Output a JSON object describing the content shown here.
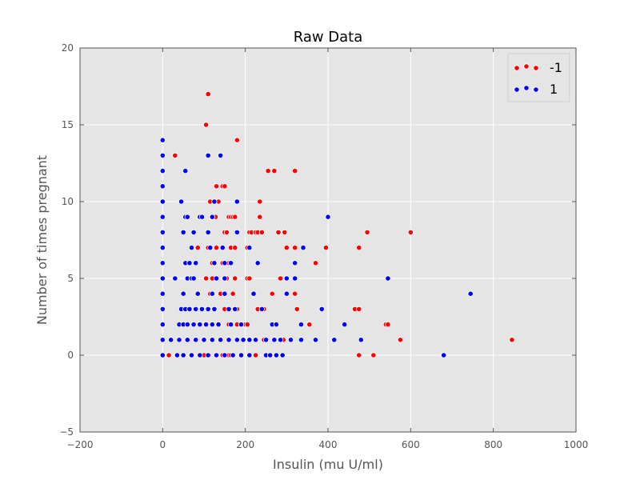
{
  "chart_data": {
    "type": "scatter",
    "title": "Raw Data",
    "xlabel": "Insulin (mu U/ml)",
    "ylabel": "Number of times pregnant",
    "xlim": [
      -200,
      1000
    ],
    "ylim": [
      -5,
      20
    ],
    "xticks": [
      -200,
      0,
      200,
      400,
      600,
      800,
      1000
    ],
    "yticks": [
      -5,
      0,
      5,
      10,
      15,
      20
    ],
    "grid": true,
    "background": "#e5e5e5",
    "legend_position": "top-right",
    "series": [
      {
        "name": "-1",
        "color": "#ff0000",
        "points": [
          [
            0,
            14
          ],
          [
            30,
            13
          ],
          [
            110,
            17
          ],
          [
            105,
            15
          ],
          [
            180,
            14
          ],
          [
            125,
            10
          ],
          [
            130,
            11
          ],
          [
            145,
            11
          ],
          [
            150,
            11
          ],
          [
            115,
            10
          ],
          [
            135,
            10
          ],
          [
            160,
            9
          ],
          [
            165,
            9
          ],
          [
            170,
            9
          ],
          [
            175,
            9
          ],
          [
            128,
            9
          ],
          [
            150,
            8
          ],
          [
            155,
            8
          ],
          [
            110,
            7
          ],
          [
            130,
            7
          ],
          [
            165,
            7
          ],
          [
            175,
            7
          ],
          [
            120,
            6
          ],
          [
            145,
            6
          ],
          [
            160,
            6
          ],
          [
            105,
            5
          ],
          [
            120,
            5
          ],
          [
            155,
            5
          ],
          [
            175,
            5
          ],
          [
            115,
            4
          ],
          [
            140,
            4
          ],
          [
            170,
            4
          ],
          [
            150,
            3
          ],
          [
            180,
            3
          ],
          [
            135,
            2
          ],
          [
            160,
            2
          ],
          [
            180,
            2
          ],
          [
            120,
            1
          ],
          [
            140,
            1
          ],
          [
            145,
            0
          ],
          [
            160,
            0
          ],
          [
            165,
            0
          ],
          [
            100,
            0
          ],
          [
            15,
            0
          ],
          [
            85,
            7
          ],
          [
            255,
            12
          ],
          [
            270,
            12
          ],
          [
            320,
            12
          ],
          [
            235,
            10
          ],
          [
            235,
            9
          ],
          [
            210,
            8
          ],
          [
            215,
            8
          ],
          [
            225,
            8
          ],
          [
            230,
            8
          ],
          [
            240,
            8
          ],
          [
            280,
            8
          ],
          [
            295,
            8
          ],
          [
            205,
            7
          ],
          [
            300,
            7
          ],
          [
            320,
            7
          ],
          [
            205,
            5
          ],
          [
            210,
            5
          ],
          [
            285,
            5
          ],
          [
            265,
            4
          ],
          [
            320,
            4
          ],
          [
            230,
            3
          ],
          [
            245,
            3
          ],
          [
            325,
            3
          ],
          [
            200,
            2
          ],
          [
            205,
            2
          ],
          [
            355,
            2
          ],
          [
            245,
            1
          ],
          [
            225,
            0
          ],
          [
            292,
            1
          ],
          [
            395,
            7
          ],
          [
            370,
            6
          ],
          [
            475,
            7
          ],
          [
            495,
            8
          ],
          [
            600,
            8
          ],
          [
            465,
            3
          ],
          [
            475,
            3
          ],
          [
            540,
            2
          ],
          [
            545,
            2
          ],
          [
            475,
            0
          ],
          [
            510,
            0
          ],
          [
            575,
            1
          ],
          [
            845,
            1
          ]
        ]
      },
      {
        "name": "1",
        "color": "#0000ff",
        "points": [
          [
            0,
            14
          ],
          [
            0,
            13
          ],
          [
            0,
            12
          ],
          [
            0,
            11
          ],
          [
            0,
            10
          ],
          [
            0,
            9
          ],
          [
            0,
            8
          ],
          [
            0,
            7
          ],
          [
            0,
            6
          ],
          [
            0,
            5
          ],
          [
            0,
            4
          ],
          [
            0,
            3
          ],
          [
            0,
            2
          ],
          [
            0,
            1
          ],
          [
            0,
            0
          ],
          [
            110,
            13
          ],
          [
            140,
            13
          ],
          [
            55,
            12
          ],
          [
            125,
            10
          ],
          [
            45,
            10
          ],
          [
            55,
            9
          ],
          [
            60,
            9
          ],
          [
            90,
            9
          ],
          [
            95,
            9
          ],
          [
            120,
            9
          ],
          [
            180,
            10
          ],
          [
            110,
            8
          ],
          [
            180,
            8
          ],
          [
            50,
            8
          ],
          [
            75,
            8
          ],
          [
            145,
            7
          ],
          [
            115,
            7
          ],
          [
            70,
            7
          ],
          [
            55,
            6
          ],
          [
            65,
            6
          ],
          [
            80,
            6
          ],
          [
            125,
            6
          ],
          [
            150,
            6
          ],
          [
            165,
            6
          ],
          [
            30,
            5
          ],
          [
            60,
            5
          ],
          [
            70,
            5
          ],
          [
            75,
            5
          ],
          [
            130,
            5
          ],
          [
            150,
            5
          ],
          [
            50,
            4
          ],
          [
            85,
            4
          ],
          [
            120,
            4
          ],
          [
            150,
            4
          ],
          [
            45,
            3
          ],
          [
            55,
            3
          ],
          [
            65,
            3
          ],
          [
            80,
            3
          ],
          [
            95,
            3
          ],
          [
            110,
            3
          ],
          [
            125,
            3
          ],
          [
            160,
            3
          ],
          [
            175,
            3
          ],
          [
            40,
            2
          ],
          [
            50,
            2
          ],
          [
            60,
            2
          ],
          [
            75,
            2
          ],
          [
            90,
            2
          ],
          [
            105,
            2
          ],
          [
            120,
            2
          ],
          [
            135,
            2
          ],
          [
            165,
            2
          ],
          [
            190,
            2
          ],
          [
            20,
            1
          ],
          [
            40,
            1
          ],
          [
            60,
            1
          ],
          [
            80,
            1
          ],
          [
            100,
            1
          ],
          [
            120,
            1
          ],
          [
            140,
            1
          ],
          [
            160,
            1
          ],
          [
            180,
            1
          ],
          [
            195,
            1
          ],
          [
            35,
            0
          ],
          [
            50,
            0
          ],
          [
            70,
            0
          ],
          [
            90,
            0
          ],
          [
            110,
            0
          ],
          [
            130,
            0
          ],
          [
            150,
            0
          ],
          [
            170,
            0
          ],
          [
            190,
            0
          ],
          [
            210,
            7
          ],
          [
            230,
            6
          ],
          [
            220,
            4
          ],
          [
            240,
            3
          ],
          [
            265,
            2
          ],
          [
            275,
            2
          ],
          [
            210,
            1
          ],
          [
            225,
            1
          ],
          [
            250,
            1
          ],
          [
            270,
            1
          ],
          [
            285,
            1
          ],
          [
            250,
            0
          ],
          [
            260,
            0
          ],
          [
            275,
            0
          ],
          [
            290,
            0
          ],
          [
            210,
            0
          ],
          [
            300,
            5
          ],
          [
            320,
            6
          ],
          [
            320,
            5
          ],
          [
            340,
            7
          ],
          [
            300,
            4
          ],
          [
            385,
            3
          ],
          [
            335,
            2
          ],
          [
            310,
            1
          ],
          [
            335,
            1
          ],
          [
            370,
            1
          ],
          [
            400,
            9
          ],
          [
            440,
            2
          ],
          [
            415,
            1
          ],
          [
            480,
            1
          ],
          [
            545,
            5
          ],
          [
            680,
            0
          ],
          [
            745,
            4
          ]
        ]
      }
    ]
  }
}
